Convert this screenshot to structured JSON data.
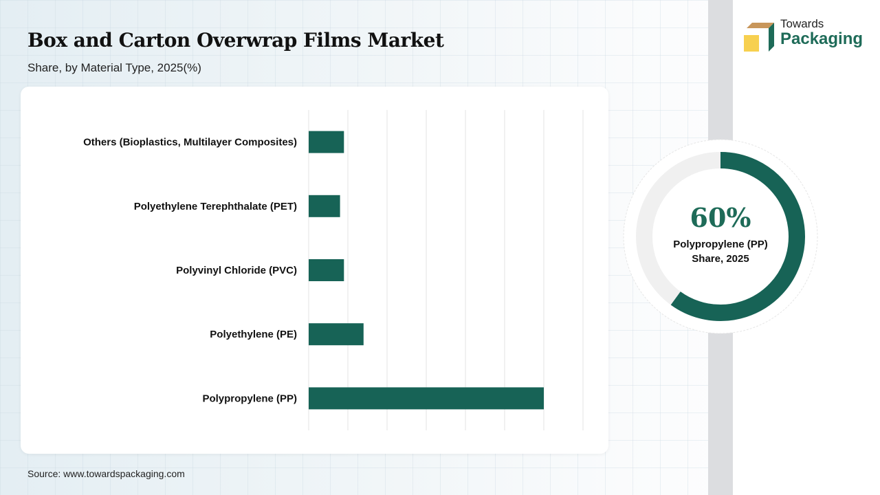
{
  "header": {
    "title": "Box and Carton Overwrap Films Market",
    "subtitle": "Share, by Material Type, 2025(%)"
  },
  "logo": {
    "line1": "Towards",
    "line2": "Packaging"
  },
  "source": "Source: www.towardspackaging.com",
  "colors": {
    "bar": "#176356",
    "donut_track": "#f0f0f0",
    "accent": "#1e6b58"
  },
  "chart_data": [
    {
      "type": "bar",
      "orientation": "horizontal",
      "categories": [
        "Others (Bioplastics, Multilayer Composites)",
        "Polyethylene Terephthalate (PET)",
        "Polyvinyl Chloride (PVC)",
        "Polyethylene (PE)",
        "Polypropylene (PP)"
      ],
      "values": [
        9,
        8,
        9,
        14,
        60
      ],
      "xlim": [
        0,
        70
      ],
      "grid": true,
      "unit": "%"
    },
    {
      "type": "pie",
      "variant": "donut",
      "value": 60,
      "center_value": "60%",
      "center_label_1": "Polypropylene (PP)",
      "center_label_2": "Share, 2025"
    }
  ]
}
